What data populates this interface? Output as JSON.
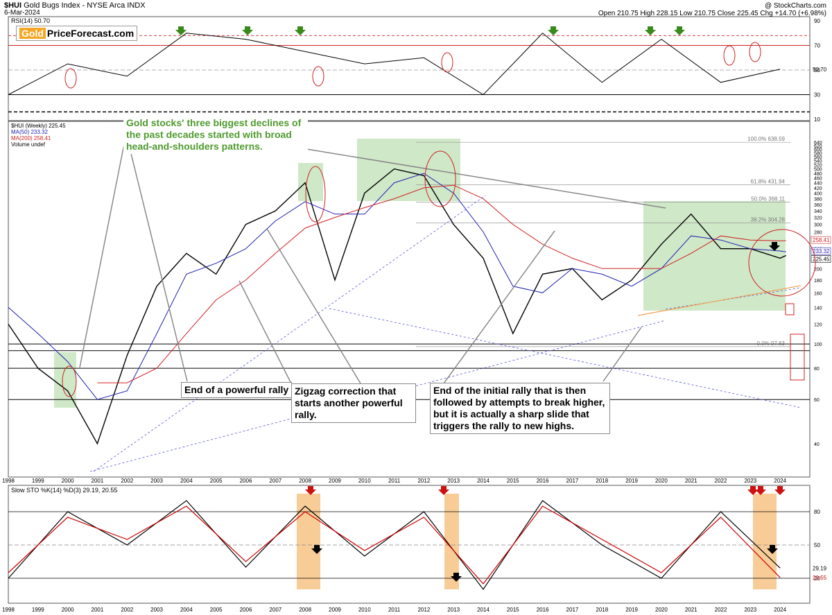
{
  "header": {
    "symbol": "$HUI",
    "name": "Gold Bugs Index - NYSE Arca INDX",
    "date": "6-Mar-2024",
    "credit": "@ StockCharts.com",
    "ohlc": "Open 210.75  High 228.15  Low 210.75  Close 225.45  Chg +14.70 (+6.98%)"
  },
  "logo": {
    "gold": "Gold",
    "rest": "PriceForecast.com"
  },
  "rsi_panel": {
    "label": "RSI(14) 50.70",
    "ticks": [
      "90",
      "70",
      "50",
      "30",
      "10"
    ],
    "current": "50.70"
  },
  "price_panel": {
    "legend": [
      "$HUI (Weekly) 225.45",
      "MA(50) 233.32",
      "MA(200) 258.41",
      "Volume undef"
    ],
    "ticks": [
      "640",
      "620",
      "600",
      "580",
      "560",
      "540",
      "520",
      "500",
      "480",
      "460",
      "440",
      "420",
      "400",
      "380",
      "360",
      "340",
      "320",
      "300",
      "280",
      "260",
      "240",
      "220",
      "200",
      "180",
      "160",
      "140",
      "120",
      "100",
      "80",
      "60",
      "40"
    ],
    "fib": [
      "100.0% 638.59",
      "61.8% 431.94",
      "50.0% 368.11",
      "38.2% 304.28",
      "0.0% 97.63"
    ],
    "right_labels": [
      "258.41",
      "233.32",
      "225.45"
    ]
  },
  "stoch_panel": {
    "label": "Slow STO %K(14) %D(3) 29.19, 20.55",
    "ticks": [
      "80",
      "50",
      "20"
    ],
    "right_labels": [
      "29.19",
      "20.55"
    ]
  },
  "years": [
    "1998",
    "1999",
    "2000",
    "2001",
    "2002",
    "2003",
    "2004",
    "2005",
    "2006",
    "2007",
    "2008",
    "2009",
    "2010",
    "2011",
    "2012",
    "2013",
    "2014",
    "2015",
    "2016",
    "2017",
    "2018",
    "2019",
    "2020",
    "2021",
    "2022",
    "2023",
    "2024"
  ],
  "annotations": {
    "gold_stocks": "Gold stocks' three biggest declines of the past decades started with broad head-and-shoulders patterns.",
    "end_rally": "End of a powerful rally",
    "zigzag": "Zigzag correction that starts another powerful rally.",
    "initial_rally": "End of the initial rally that is then followed by attempts to break higher, but it is actually a sharp slide that triggers the rally to new highs."
  },
  "colors": {
    "price": "#000000",
    "ma50": "#1f1fb0",
    "ma200": "#d02020",
    "highlight_green": "#a8d59a",
    "highlight_orange": "#f5b060",
    "stoch_k": "#000000",
    "stoch_d": "#cc0000"
  },
  "chart_data": [
    {
      "type": "line",
      "title": "RSI(14)",
      "series": [
        {
          "name": "RSI(14)",
          "x": [
            "1998",
            "2000",
            "2002",
            "2004",
            "2006",
            "2008",
            "2010",
            "2012",
            "2014",
            "2016",
            "2018",
            "2020",
            "2022",
            "2024"
          ],
          "values": [
            30,
            55,
            45,
            80,
            75,
            65,
            55,
            60,
            30,
            80,
            40,
            75,
            40,
            50.7
          ]
        }
      ],
      "ylim": [
        10,
        90
      ],
      "reference_lines": [
        70,
        30
      ]
    },
    {
      "type": "line",
      "title": "$HUI (Weekly)",
      "y_scale": "log",
      "ylim": [
        30,
        650
      ],
      "x": [
        "1998",
        "1999",
        "2000",
        "2001",
        "2002",
        "2003",
        "2004",
        "2005",
        "2006",
        "2007",
        "2008",
        "2009",
        "2010",
        "2011",
        "2012",
        "2013",
        "2014",
        "2015",
        "2016",
        "2017",
        "2018",
        "2019",
        "2020",
        "2021",
        "2022",
        "2023",
        "2024",
        "2024.2"
      ],
      "series": [
        {
          "name": "$HUI",
          "values": [
            120,
            80,
            65,
            40,
            90,
            170,
            230,
            190,
            300,
            340,
            440,
            180,
            400,
            500,
            470,
            300,
            220,
            110,
            190,
            200,
            150,
            180,
            250,
            330,
            240,
            240,
            220,
            225.45
          ]
        },
        {
          "name": "MA(50)",
          "values": [
            140,
            110,
            85,
            60,
            65,
            110,
            190,
            210,
            240,
            310,
            370,
            330,
            330,
            440,
            480,
            400,
            280,
            170,
            160,
            200,
            190,
            170,
            200,
            270,
            260,
            240,
            235,
            233.32
          ]
        },
        {
          "name": "MA(200)",
          "values": [
            null,
            null,
            null,
            70,
            70,
            80,
            110,
            150,
            180,
            230,
            290,
            320,
            350,
            380,
            420,
            430,
            380,
            300,
            250,
            220,
            200,
            200,
            200,
            230,
            270,
            260,
            258,
            258.41
          ]
        }
      ]
    },
    {
      "type": "line",
      "title": "Slow STO %K(14) %D(3)",
      "ylim": [
        0,
        100
      ],
      "x": [
        "1998",
        "2000",
        "2002",
        "2004",
        "2006",
        "2008",
        "2010",
        "2012",
        "2014",
        "2016",
        "2018",
        "2020",
        "2022",
        "2024"
      ],
      "series": [
        {
          "name": "%K",
          "values": [
            20,
            80,
            50,
            90,
            30,
            85,
            40,
            80,
            10,
            90,
            50,
            20,
            80,
            29.19
          ]
        },
        {
          "name": "%D",
          "values": [
            25,
            75,
            55,
            85,
            35,
            80,
            45,
            75,
            15,
            85,
            55,
            25,
            75,
            20.55
          ]
        }
      ]
    }
  ]
}
